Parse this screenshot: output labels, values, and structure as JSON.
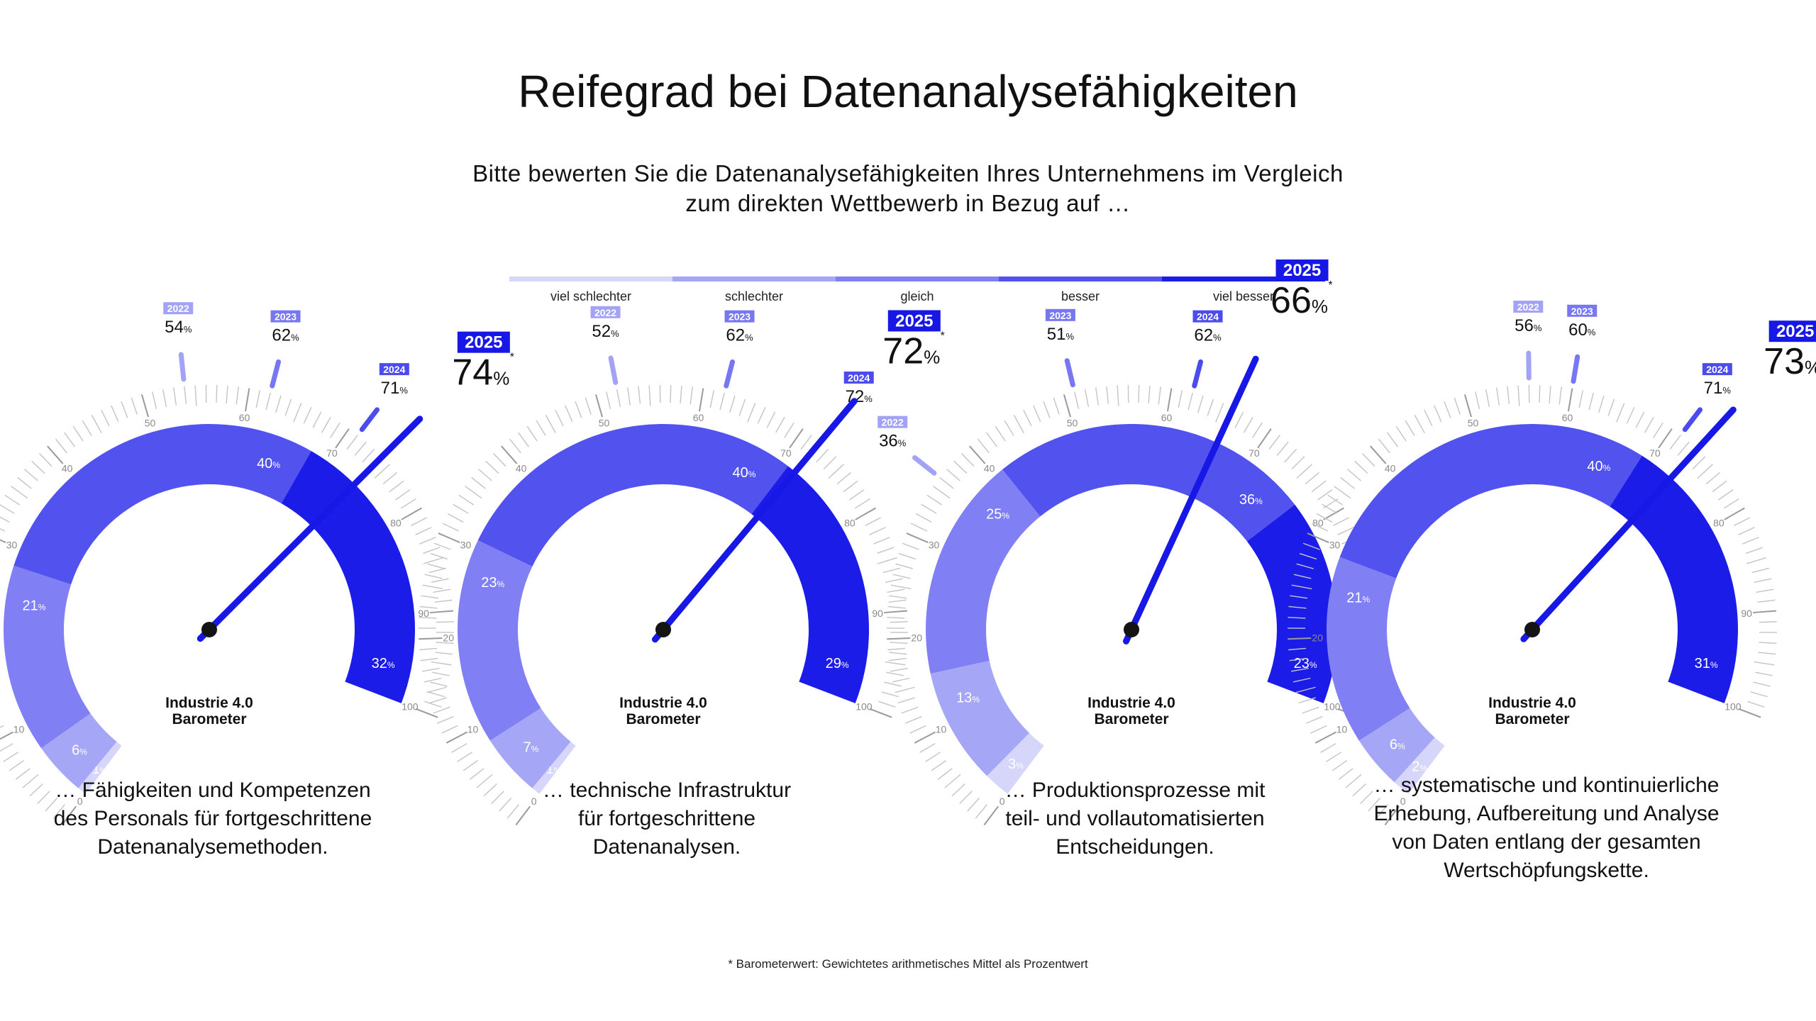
{
  "title": "Reifegrad bei Datenanalysefähigkeiten",
  "subtitle_line1": "Bitte bewerten Sie die Datenanalysefähigkeiten Ihres Unternehmens im Vergleich",
  "subtitle_line2": "zum direkten Wettbewerb in Bezug auf …",
  "colors": {
    "viel_schlechter": "#d6d6fb",
    "schlechter": "#a6a6f7",
    "gleich": "#8080f4",
    "besser": "#5252ef",
    "viel_besser": "#1c1ce8",
    "year_2022": "#a3a3f5",
    "year_2023": "#7777f1",
    "year_2024": "#4b4bee",
    "year_2025": "#1717e6"
  },
  "legend": [
    {
      "label": "viel schlechter",
      "color": "#d6d6fb"
    },
    {
      "label": "schlechter",
      "color": "#a6a6f7"
    },
    {
      "label": "gleich",
      "color": "#8080f4"
    },
    {
      "label": "besser",
      "color": "#5252ef"
    },
    {
      "label": "viel besser",
      "color": "#1c1ce8"
    }
  ],
  "gauge_center_label_line1": "Industrie 4.0",
  "gauge_center_label_line2": "Barometer",
  "scale_labels": [
    "0",
    "10",
    "20",
    "30",
    "40",
    "50",
    "60",
    "70",
    "80",
    "90",
    "100"
  ],
  "footnote": "* Barometerwert: Gewichtetes arithmetisches Mittel als Prozentwert",
  "chart_data": [
    {
      "type": "gauge",
      "caption": [
        "… Fähigkeiten und Kompetenzen",
        "des Personals für fortgeschrittene",
        "Datenanalysemethoden."
      ],
      "segments": [
        1,
        6,
        21,
        40,
        32
      ],
      "history": [
        {
          "year": "2022",
          "value": 54
        },
        {
          "year": "2023",
          "value": 62
        },
        {
          "year": "2024",
          "value": 71
        }
      ],
      "current": {
        "year": "2025",
        "value": 74
      },
      "scale": [
        0,
        100
      ]
    },
    {
      "type": "gauge",
      "caption": [
        "… technische Infrastruktur",
        "für fortgeschrittene",
        "Datenanalysen."
      ],
      "segments": [
        1,
        7,
        23,
        40,
        29
      ],
      "history": [
        {
          "year": "2022",
          "value": 52
        },
        {
          "year": "2023",
          "value": 62
        },
        {
          "year": "2024",
          "value": 72
        }
      ],
      "current": {
        "year": "2025",
        "value": 72
      },
      "scale": [
        0,
        100
      ]
    },
    {
      "type": "gauge",
      "caption": [
        "… Produktionsprozesse mit",
        "teil- und vollautomatisierten",
        "Entscheidungen."
      ],
      "segments": [
        3,
        13,
        25,
        36,
        23
      ],
      "history": [
        {
          "year": "2022",
          "value": 36
        },
        {
          "year": "2023",
          "value": 51
        },
        {
          "year": "2024",
          "value": 62
        }
      ],
      "current": {
        "year": "2025",
        "value": 66
      },
      "scale": [
        0,
        100
      ]
    },
    {
      "type": "gauge",
      "caption": [
        "… systematische und kontinuierliche",
        "Erhebung, Aufbereitung und Analyse",
        "von Daten entlang der gesamten",
        "Wertschöpfungskette."
      ],
      "segments": [
        2,
        6,
        21,
        40,
        31
      ],
      "history": [
        {
          "year": "2022",
          "value": 56
        },
        {
          "year": "2023",
          "value": 60
        },
        {
          "year": "2024",
          "value": 71
        }
      ],
      "current": {
        "year": "2025",
        "value": 73
      },
      "scale": [
        0,
        100
      ]
    }
  ]
}
